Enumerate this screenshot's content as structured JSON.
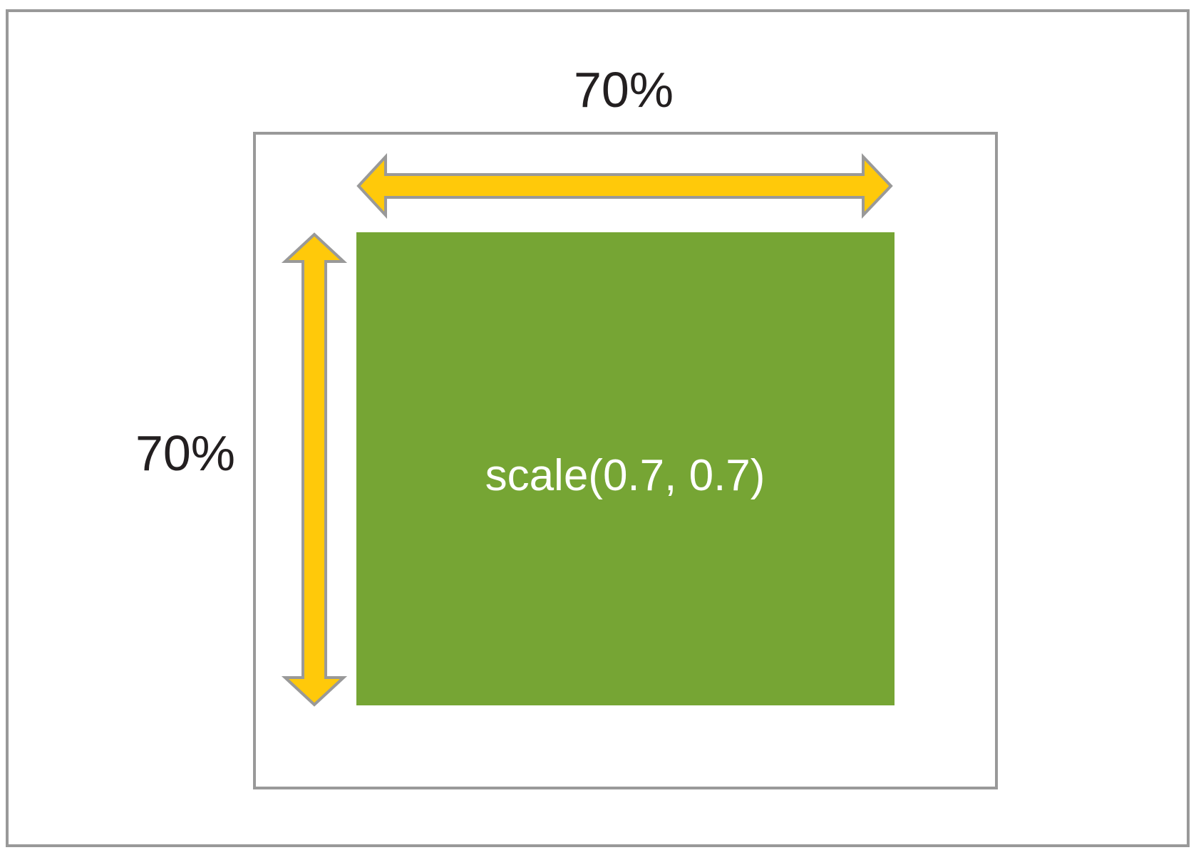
{
  "diagram": {
    "top_label": "70%",
    "side_label": "70%",
    "box_label": "scale(0.7, 0.7)"
  }
}
